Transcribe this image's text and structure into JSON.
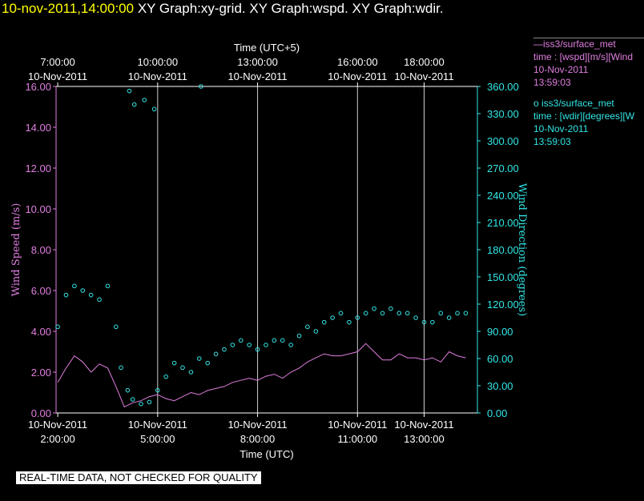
{
  "title": {
    "timestamp": "10-nov-2011,14:00:00",
    "rest": " XY Graph:xy-grid.  XY Graph:wspd.  XY Graph:wdir."
  },
  "legend": {
    "wspd": {
      "line1": "—iss3/surface_met",
      "line2": "time : [wspd][m/s][Wind",
      "line3": "10-Nov-2011",
      "line4": "13:59:03",
      "color": "#e07ee0"
    },
    "wdir": {
      "line1": "o iss3/surface_met",
      "line2": "time : [wdir][degrees][W",
      "line3": "10-Nov-2011",
      "line4": "13:59:03",
      "color": "#33e6e6"
    }
  },
  "banner": "REAL-TIME DATA, NOT CHECKED FOR QUALITY",
  "chart_data": {
    "type": "line",
    "xlabel_bottom": "Time (UTC)",
    "xlabel_top": "Time (UTC+5)",
    "ylabel_left": "Wind Speed (m/s)",
    "ylabel_right": "Wind Direction (degrees)",
    "xlim_utc_hours": [
      1.95,
      14.6
    ],
    "ylim_left": [
      0,
      16
    ],
    "ylim_right": [
      0,
      360
    ],
    "grid": true,
    "bottom_ticks": [
      {
        "hour": 2,
        "date": "10-Nov-2011",
        "time": "2:00:00"
      },
      {
        "hour": 5,
        "date": "10-Nov-2011",
        "time": "5:00:00"
      },
      {
        "hour": 8,
        "date": "10-Nov-2011",
        "time": "8:00:00"
      },
      {
        "hour": 11,
        "date": "10-Nov-2011",
        "time": "11:00:00"
      },
      {
        "hour": 13,
        "date": "10-Nov-2011",
        "time": "13:00:00"
      }
    ],
    "top_ticks": [
      {
        "hour": 2,
        "date": "10-Nov-2011",
        "time": "7:00:00"
      },
      {
        "hour": 5,
        "date": "10-Nov-2011",
        "time": "10:00:00"
      },
      {
        "hour": 8,
        "date": "10-Nov-2011",
        "time": "13:00:00"
      },
      {
        "hour": 11,
        "date": "10-Nov-2011",
        "time": "16:00:00"
      },
      {
        "hour": 13,
        "date": "10-Nov-2011",
        "time": "18:00:00"
      }
    ],
    "left_ticks": [
      "0.00",
      "2.00",
      "4.00",
      "6.00",
      "8.00",
      "10.00",
      "12.00",
      "14.00",
      "16.00"
    ],
    "right_ticks": [
      "0.00",
      "30.00",
      "60.00",
      "90.00",
      "120.00",
      "150.00",
      "180.00",
      "210.00",
      "240.00",
      "270.00",
      "300.00",
      "330.00",
      "360.00"
    ],
    "series": [
      {
        "name": "iss3/surface_met time : [wspd][m/s]",
        "axis": "left",
        "color": "#e07ee0",
        "style": "line",
        "x": [
          2.0,
          2.25,
          2.5,
          2.75,
          3.0,
          3.25,
          3.5,
          3.75,
          4.0,
          4.25,
          4.5,
          4.75,
          5.0,
          5.25,
          5.5,
          5.75,
          6.0,
          6.25,
          6.5,
          6.75,
          7.0,
          7.25,
          7.5,
          7.75,
          8.0,
          8.25,
          8.5,
          8.75,
          9.0,
          9.25,
          9.5,
          9.75,
          10.0,
          10.25,
          10.5,
          10.75,
          11.0,
          11.25,
          11.5,
          11.75,
          12.0,
          12.25,
          12.5,
          12.75,
          13.0,
          13.25,
          13.5,
          13.75,
          14.0,
          14.25
        ],
        "y": [
          1.5,
          2.2,
          2.8,
          2.5,
          2.0,
          2.4,
          2.2,
          1.3,
          0.3,
          0.5,
          0.6,
          0.8,
          0.9,
          0.7,
          0.6,
          0.8,
          1.0,
          0.9,
          1.1,
          1.2,
          1.3,
          1.5,
          1.6,
          1.7,
          1.6,
          1.8,
          1.9,
          1.7,
          2.0,
          2.2,
          2.5,
          2.7,
          2.9,
          2.8,
          2.8,
          2.9,
          3.0,
          3.4,
          3.0,
          2.6,
          2.6,
          2.9,
          2.7,
          2.7,
          2.6,
          2.7,
          2.5,
          3.0,
          2.8,
          2.7
        ]
      },
      {
        "name": "iss3/surface_met time : [wdir][degrees]",
        "axis": "right",
        "color": "#33e6e6",
        "style": "markers",
        "x": [
          2.0,
          2.25,
          2.5,
          2.75,
          3.0,
          3.25,
          3.5,
          3.75,
          3.9,
          4.1,
          4.25,
          4.5,
          4.75,
          5.0,
          5.25,
          5.5,
          5.75,
          6.0,
          6.25,
          6.5,
          6.75,
          7.0,
          7.25,
          7.5,
          7.75,
          8.0,
          8.25,
          8.5,
          8.75,
          9.0,
          9.25,
          9.5,
          9.75,
          10.0,
          10.25,
          10.5,
          10.75,
          11.0,
          11.25,
          11.5,
          11.75,
          12.0,
          12.25,
          12.5,
          12.75,
          13.0,
          13.25,
          13.5,
          13.75,
          14.0,
          14.25,
          4.15,
          4.3,
          4.6,
          4.9,
          6.3
        ],
        "y": [
          95,
          130,
          140,
          135,
          130,
          125,
          140,
          95,
          50,
          25,
          15,
          10,
          12,
          25,
          40,
          55,
          50,
          45,
          60,
          55,
          65,
          70,
          75,
          80,
          75,
          70,
          75,
          80,
          80,
          75,
          85,
          95,
          90,
          100,
          105,
          110,
          100,
          105,
          110,
          115,
          110,
          115,
          110,
          110,
          105,
          100,
          100,
          110,
          105,
          110,
          110,
          355,
          340,
          345,
          335,
          360
        ]
      }
    ]
  }
}
